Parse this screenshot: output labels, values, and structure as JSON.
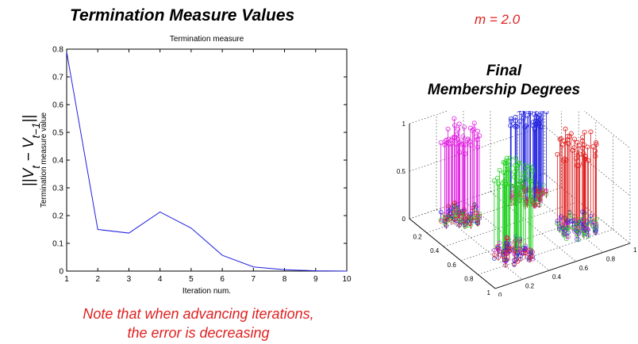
{
  "header": {
    "title": "Termination Measure Values",
    "m_label": "m = 2.0",
    "final_title_line1": "Final",
    "final_title_line2": "Membership Degrees"
  },
  "big_ylabel": "||V_t − V_{t−1}||",
  "note_line1": "Note that when advancing iterations,",
  "note_line2": "the error is decreasing",
  "chart_data": [
    {
      "type": "line",
      "title": "Termination measure",
      "xlabel": "Iteration num.",
      "ylabel": "Termination measure value",
      "x": [
        1,
        2,
        3,
        4,
        5,
        6,
        7,
        8,
        9,
        10
      ],
      "xlim": [
        1,
        10
      ],
      "ylim": [
        0,
        0.8
      ],
      "xticks": [
        "1",
        "2",
        "3",
        "4",
        "5",
        "6",
        "7",
        "8",
        "9",
        "10"
      ],
      "yticks": [
        "0",
        "0.1",
        "0.2",
        "0.3",
        "0.4",
        "0.5",
        "0.6",
        "0.7",
        "0.8"
      ],
      "series": [
        {
          "values": [
            0.79,
            0.15,
            0.137,
            0.213,
            0.155,
            0.057,
            0.015,
            0.005,
            0.001,
            0.0
          ],
          "color": "#2020e0"
        }
      ],
      "grid": false
    },
    {
      "type": "scatter",
      "title": "",
      "x_ticks": [
        "0",
        "0.2",
        "0.4",
        "0.6",
        "0.8",
        "1"
      ],
      "y_ticks": [
        "0",
        "0.2",
        "0.4",
        "0.6",
        "0.8",
        "1"
      ],
      "z_ticks": [
        "0",
        "0.5",
        "1"
      ],
      "series": [
        {
          "color": "#e020e0",
          "center": [
            0.2,
            0.25
          ]
        },
        {
          "color": "#2020e0",
          "center": [
            0.2,
            0.75
          ]
        },
        {
          "color": "#20d020",
          "center": [
            0.75,
            0.3
          ]
        },
        {
          "color": "#e02020",
          "center": [
            0.7,
            0.8
          ]
        }
      ],
      "grid": true
    }
  ]
}
